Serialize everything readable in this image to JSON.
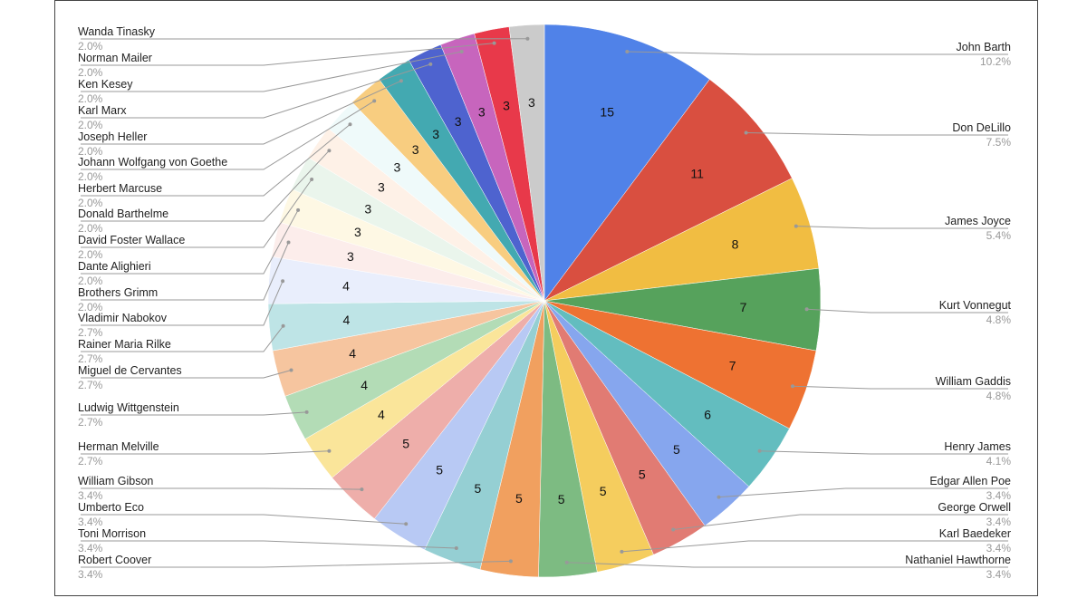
{
  "chart_data": {
    "type": "pie",
    "title": "",
    "colors": {
      "John Barth": "#5082e8",
      "Don DeLillo": "#d94f40",
      "James Joyce": "#f1bd42",
      "Kurt Vonnegut": "#56a25c",
      "William Gaddis": "#ee7232",
      "Henry James": "#63bdbf",
      "Edgar Allen Poe": "#86a6ee",
      "George Orwell": "#e17b73",
      "Karl Baedeker": "#f5cd5e",
      "Nathaniel Hawthorne": "#7dbb82",
      "Robert Coover": "#f1a05f",
      "Toni Morrison": "#95cfd3",
      "Umberto Eco": "#b8c9f4",
      "William Gibson": "#eeaeaa",
      "Herman Melville": "#fae59a",
      "Ludwig Wittgenstein": "#b3dcb6",
      "Miguel de Cervantes": "#f6c59f",
      "Rainer Maria Rilke": "#bee4e6",
      "Vladimir Nabokov": "#e9eefc",
      "Brothers Grimm": "#fcedeb",
      "Dante Alighieri": "#fef8e4",
      "David Foster Wallace": "#eaf5ec",
      "Donald Barthelme": "#fef1e7",
      "Herbert Marcuse": "#effafa",
      "Johann Wolfgang von Goethe": "#f8cd80",
      "Joseph Heller": "#43a9b1",
      "Karl Marx": "#4e63cf",
      "Ken Kesey": "#c765bd",
      "Norman Mailer": "#e8394a",
      "Wanda Tinasky": "#cbcbcb"
    },
    "slices": [
      {
        "label": "John Barth",
        "value": 15,
        "percent": "10.2%"
      },
      {
        "label": "Don DeLillo",
        "value": 11,
        "percent": "7.5%"
      },
      {
        "label": "James Joyce",
        "value": 8,
        "percent": "5.4%"
      },
      {
        "label": "Kurt Vonnegut",
        "value": 7,
        "percent": "4.8%"
      },
      {
        "label": "William Gaddis",
        "value": 7,
        "percent": "4.8%"
      },
      {
        "label": "Henry James",
        "value": 6,
        "percent": "4.1%"
      },
      {
        "label": "Edgar Allen Poe",
        "value": 5,
        "percent": "3.4%"
      },
      {
        "label": "George Orwell",
        "value": 5,
        "percent": "3.4%"
      },
      {
        "label": "Karl Baedeker",
        "value": 5,
        "percent": "3.4%"
      },
      {
        "label": "Nathaniel Hawthorne",
        "value": 5,
        "percent": "3.4%"
      },
      {
        "label": "Robert Coover",
        "value": 5,
        "percent": "3.4%"
      },
      {
        "label": "Toni Morrison",
        "value": 5,
        "percent": "3.4%"
      },
      {
        "label": "Umberto Eco",
        "value": 5,
        "percent": "3.4%"
      },
      {
        "label": "William Gibson",
        "value": 5,
        "percent": "3.4%"
      },
      {
        "label": "Herman Melville",
        "value": 4,
        "percent": "2.7%"
      },
      {
        "label": "Ludwig Wittgenstein",
        "value": 4,
        "percent": "2.7%"
      },
      {
        "label": "Miguel de Cervantes",
        "value": 4,
        "percent": "2.7%"
      },
      {
        "label": "Rainer Maria Rilke",
        "value": 4,
        "percent": "2.7%"
      },
      {
        "label": "Vladimir Nabokov",
        "value": 4,
        "percent": "2.7%"
      },
      {
        "label": "Brothers Grimm",
        "value": 3,
        "percent": "2.0%"
      },
      {
        "label": "Dante Alighieri",
        "value": 3,
        "percent": "2.0%"
      },
      {
        "label": "David Foster Wallace",
        "value": 3,
        "percent": "2.0%"
      },
      {
        "label": "Donald Barthelme",
        "value": 3,
        "percent": "2.0%"
      },
      {
        "label": "Herbert Marcuse",
        "value": 3,
        "percent": "2.0%"
      },
      {
        "label": "Johann Wolfgang von Goethe",
        "value": 3,
        "percent": "2.0%"
      },
      {
        "label": "Joseph Heller",
        "value": 3,
        "percent": "2.0%"
      },
      {
        "label": "Karl Marx",
        "value": 3,
        "percent": "2.0%"
      },
      {
        "label": "Ken Kesey",
        "value": 3,
        "percent": "2.0%"
      },
      {
        "label": "Norman Mailer",
        "value": 3,
        "percent": "2.0%"
      },
      {
        "label": "Wanda Tinasky",
        "value": 3,
        "percent": "2.0%"
      }
    ]
  }
}
